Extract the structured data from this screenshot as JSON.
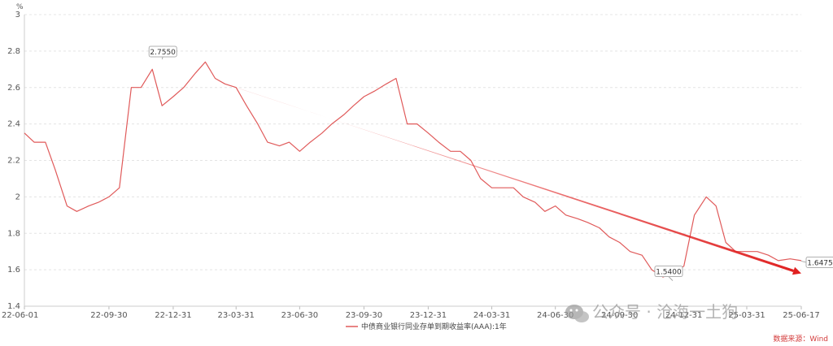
{
  "chart_data": {
    "type": "line",
    "y_unit": "%",
    "ylim": [
      1.4,
      3
    ],
    "y_ticks": [
      "1.4",
      "1.6",
      "1.8",
      "2",
      "2.2",
      "2.4",
      "2.6",
      "2.8",
      "3"
    ],
    "x_ticks": [
      "22-06-01",
      "22-09-30",
      "22-12-31",
      "23-03-31",
      "23-06-30",
      "23-09-30",
      "23-12-31",
      "24-03-31",
      "24-06-30",
      "24-09-30",
      "24-12-31",
      "25-03-31",
      "25-06-17"
    ],
    "grid": "horizontal-dashed",
    "series": [
      {
        "name": "中债商业银行同业存单到期收益率(AAA):1年",
        "color": "#e05a5a",
        "x": [
          "22-06-01",
          "22-06-15",
          "22-07-01",
          "22-07-15",
          "22-08-01",
          "22-08-15",
          "22-09-01",
          "22-09-15",
          "22-09-30",
          "22-10-15",
          "22-11-01",
          "22-11-15",
          "22-12-01",
          "22-12-15",
          "22-12-31",
          "23-01-15",
          "23-02-01",
          "23-02-15",
          "23-03-01",
          "23-03-15",
          "23-03-31",
          "23-04-15",
          "23-05-01",
          "23-05-15",
          "23-06-01",
          "23-06-15",
          "23-06-30",
          "23-07-15",
          "23-08-01",
          "23-08-15",
          "23-09-01",
          "23-09-15",
          "23-09-30",
          "23-10-15",
          "23-11-01",
          "23-11-15",
          "23-12-01",
          "23-12-15",
          "23-12-31",
          "24-01-15",
          "24-02-01",
          "24-02-15",
          "24-03-01",
          "24-03-15",
          "24-03-31",
          "24-04-15",
          "24-05-01",
          "24-05-15",
          "24-06-01",
          "24-06-15",
          "24-06-30",
          "24-07-15",
          "24-08-01",
          "24-08-15",
          "24-09-01",
          "24-09-15",
          "24-09-30",
          "24-10-15",
          "24-11-01",
          "24-11-15",
          "24-12-01",
          "24-12-15",
          "24-12-31",
          "25-01-15",
          "25-02-01",
          "25-02-15",
          "25-03-01",
          "25-03-15",
          "25-03-31",
          "25-04-15",
          "25-05-01",
          "25-05-15",
          "25-06-01",
          "25-06-17"
        ],
        "values": [
          2.35,
          2.3,
          2.3,
          2.15,
          1.95,
          1.92,
          1.95,
          1.97,
          2.0,
          2.05,
          2.6,
          2.6,
          2.7,
          2.5,
          2.55,
          2.6,
          2.68,
          2.74,
          2.65,
          2.62,
          2.6,
          2.5,
          2.4,
          2.3,
          2.28,
          2.3,
          2.25,
          2.3,
          2.35,
          2.4,
          2.45,
          2.5,
          2.55,
          2.58,
          2.62,
          2.65,
          2.4,
          2.4,
          2.35,
          2.3,
          2.25,
          2.25,
          2.2,
          2.1,
          2.05,
          2.05,
          2.05,
          2.0,
          1.97,
          1.92,
          1.95,
          1.9,
          1.88,
          1.86,
          1.83,
          1.78,
          1.75,
          1.7,
          1.68,
          1.6,
          1.56,
          1.58,
          1.62,
          1.9,
          2.0,
          1.95,
          1.75,
          1.7,
          1.7,
          1.7,
          1.68,
          1.65,
          1.66,
          1.65
        ]
      }
    ],
    "annotations": [
      {
        "date": "22-12-15",
        "value": 2.755,
        "text": "2.7550"
      },
      {
        "date": "24-12-15",
        "value": 1.54,
        "text": "1.5400"
      },
      {
        "date": "25-06-17",
        "value": 1.6475,
        "text": "1.6475"
      }
    ],
    "trend_arrow": {
      "from": [
        "23-03-31",
        2.6
      ],
      "to": [
        "25-06-17",
        1.58
      ],
      "color": "#e02020"
    },
    "legend_position": "bottom-center"
  },
  "watermark": "公众号 · 沧海一土狗",
  "source_text": "数据来源：Wind",
  "icons": {
    "watermark": "wechat-icon"
  }
}
